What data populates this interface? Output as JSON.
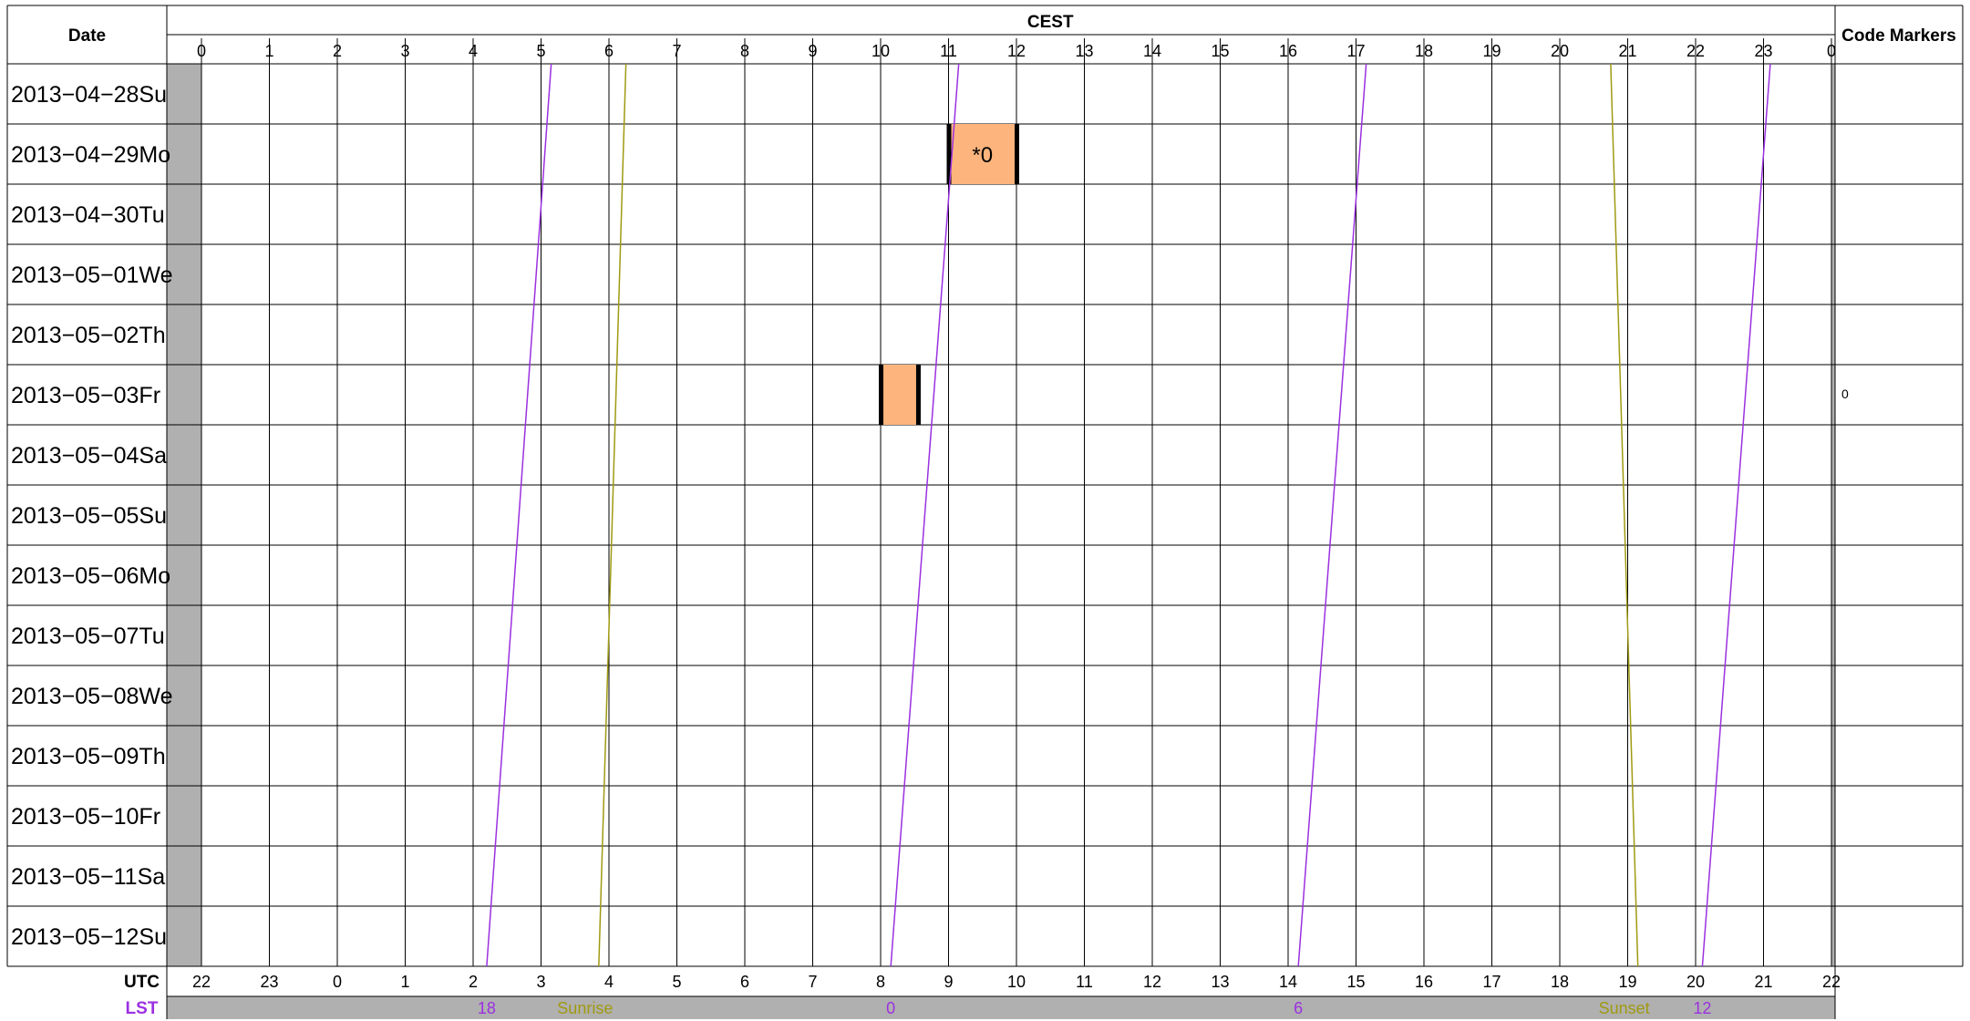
{
  "chart_data": {
    "type": "timeline-grid",
    "title": "",
    "headers": {
      "date": "Date",
      "timezone": "CEST",
      "code_markers": "Code Markers",
      "utc": "UTC",
      "lst": "LST"
    },
    "cest_hours": [
      "0",
      "1",
      "2",
      "3",
      "4",
      "5",
      "6",
      "7",
      "8",
      "9",
      "10",
      "11",
      "12",
      "13",
      "14",
      "15",
      "16",
      "17",
      "18",
      "19",
      "20",
      "21",
      "22",
      "23",
      "0"
    ],
    "utc_hours": [
      "22",
      "23",
      "0",
      "1",
      "2",
      "3",
      "4",
      "5",
      "6",
      "7",
      "8",
      "9",
      "10",
      "11",
      "12",
      "13",
      "14",
      "15",
      "16",
      "17",
      "18",
      "19",
      "20",
      "21",
      "22"
    ],
    "dates": [
      "2013−04−28Su",
      "2013−04−29Mo",
      "2013−04−30Tu",
      "2013−05−01We",
      "2013−05−02Th",
      "2013−05−03Fr",
      "2013−05−04Sa",
      "2013−05−05Su",
      "2013−05−06Mo",
      "2013−05−07Tu",
      "2013−05−08We",
      "2013−05−09Th",
      "2013−05−10Fr",
      "2013−05−11Sa",
      "2013−05−12Su"
    ],
    "code_markers": [
      "",
      "",
      "",
      "",
      "",
      "0",
      "",
      "",
      "",
      "",
      "",
      "",
      "",
      "",
      ""
    ],
    "observations": [
      {
        "row": 1,
        "start": 11.0,
        "end": 12.0,
        "label": "*0"
      },
      {
        "row": 5,
        "start": 10.0,
        "end": 10.55,
        "label": ""
      }
    ],
    "sunrise": {
      "label": "Sunrise",
      "first": 6.25,
      "last": 5.85
    },
    "sunset": {
      "label": "Sunset",
      "first": 20.75,
      "last": 21.15
    },
    "lst_lines": [
      {
        "label": "18",
        "first": 5.15,
        "last": 4.2
      },
      {
        "label": "0",
        "first": 11.15,
        "last": 10.15
      },
      {
        "label": "6",
        "first": 17.15,
        "last": 16.15
      },
      {
        "label": "12",
        "first": 23.1,
        "last": 22.1
      }
    ],
    "colors": {
      "grid": "#000000",
      "shade": "#b0b0b0",
      "observation": "#fdb57d",
      "sun": "#a09a12",
      "lst": "#9b30e0"
    }
  }
}
